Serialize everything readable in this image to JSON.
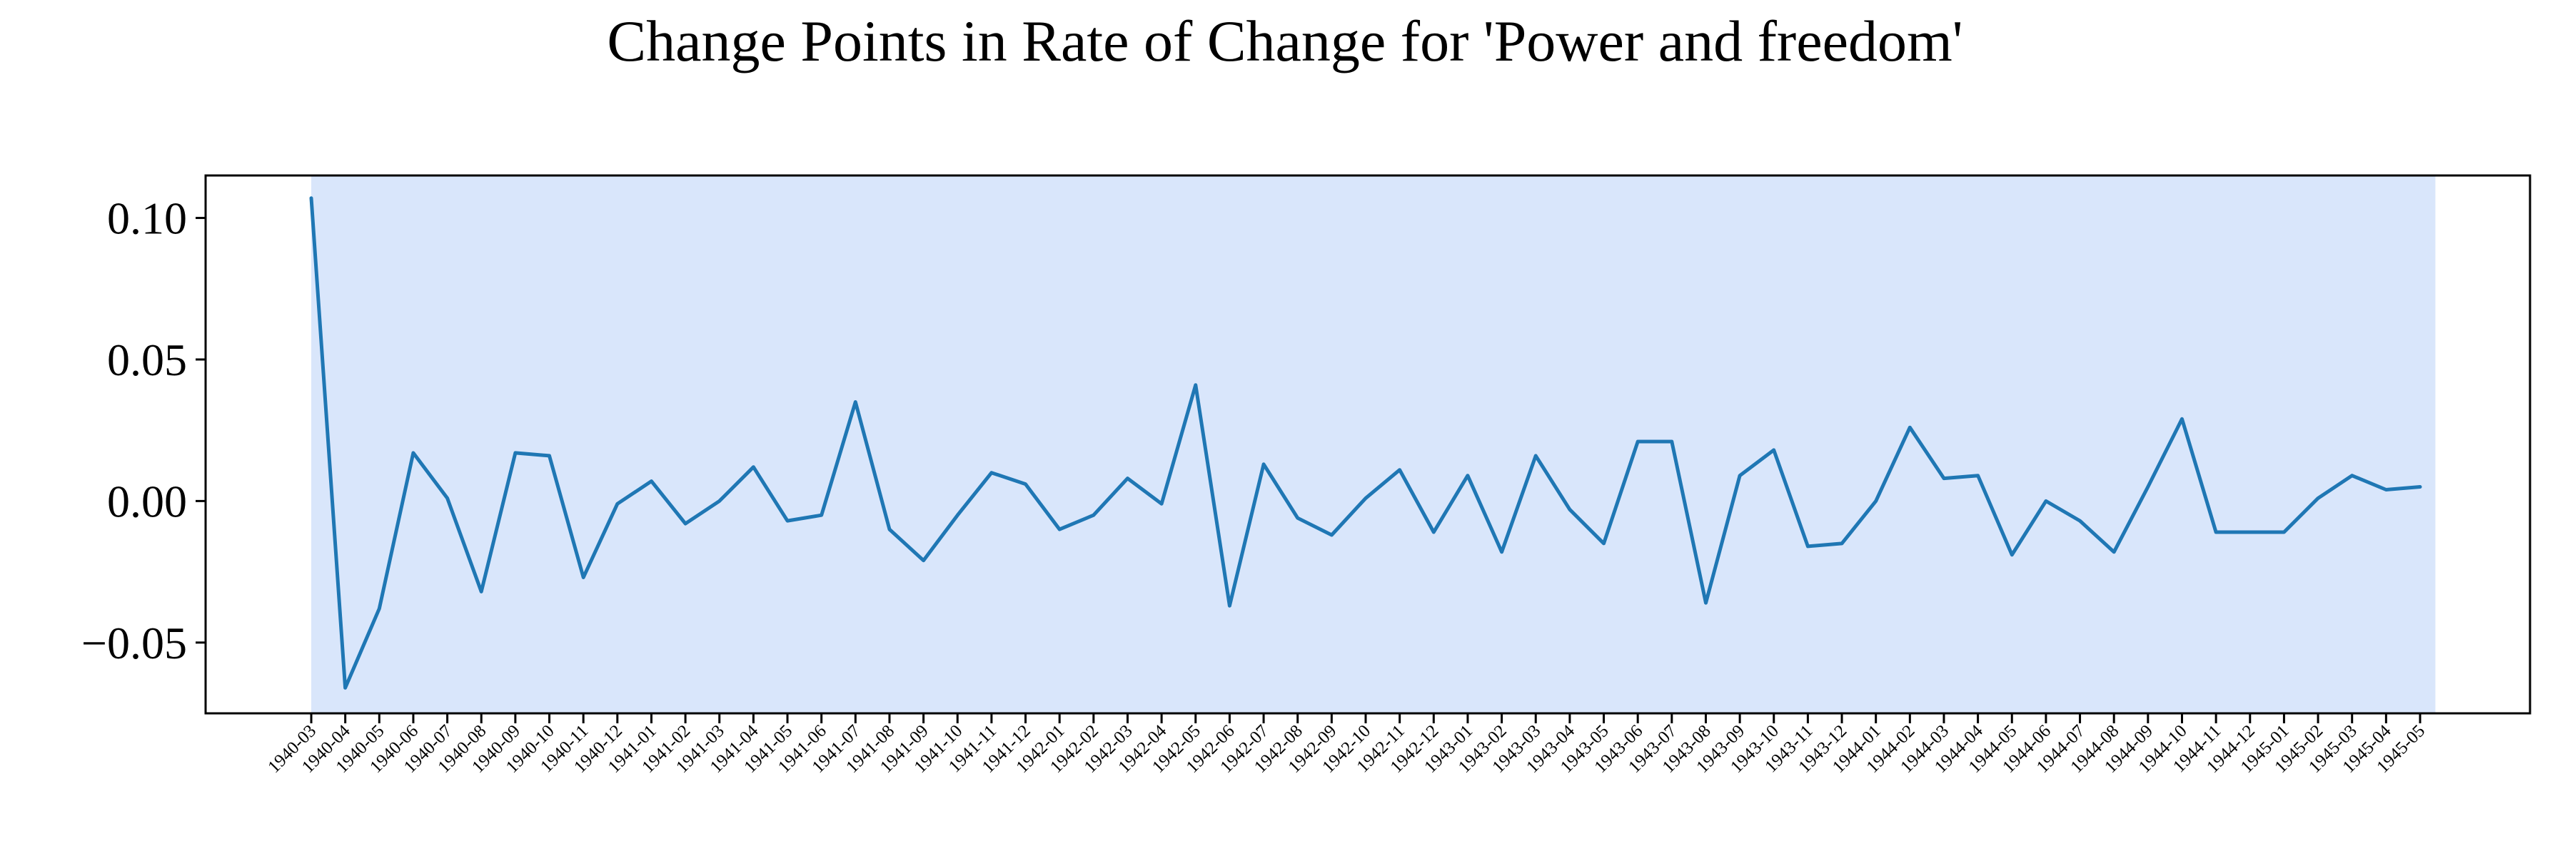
{
  "chart_data": {
    "type": "line",
    "title": "Change Points in Rate of Change for 'Power and freedom'",
    "xlabel": "",
    "ylabel": "",
    "ylim": [
      -0.075,
      0.115
    ],
    "yticks": [
      -0.05,
      0.0,
      0.05,
      0.1
    ],
    "ytick_labels": [
      "−0.05",
      "0.00",
      "0.05",
      "0.10"
    ],
    "grid": false,
    "x": [
      "1940-03",
      "1940-04",
      "1940-05",
      "1940-06",
      "1940-07",
      "1940-08",
      "1940-09",
      "1940-10",
      "1940-11",
      "1940-12",
      "1941-01",
      "1941-02",
      "1941-03",
      "1941-04",
      "1941-05",
      "1941-06",
      "1941-07",
      "1941-08",
      "1941-09",
      "1941-10",
      "1941-11",
      "1941-12",
      "1942-01",
      "1942-02",
      "1942-03",
      "1942-04",
      "1942-05",
      "1942-06",
      "1942-07",
      "1942-08",
      "1942-09",
      "1942-10",
      "1942-11",
      "1942-12",
      "1943-01",
      "1943-02",
      "1943-03",
      "1943-04",
      "1943-05",
      "1943-06",
      "1943-07",
      "1943-08",
      "1943-09",
      "1943-10",
      "1943-11",
      "1943-12",
      "1944-01",
      "1944-02",
      "1944-03",
      "1944-04",
      "1944-05",
      "1944-06",
      "1944-07",
      "1944-08",
      "1944-09",
      "1944-10",
      "1944-11",
      "1944-12",
      "1945-01",
      "1945-02",
      "1945-03",
      "1945-04",
      "1945-05"
    ],
    "series": [
      {
        "color": "#1f77b4",
        "values": [
          0.107,
          -0.066,
          -0.038,
          0.017,
          0.001,
          -0.032,
          0.017,
          0.016,
          -0.027,
          -0.001,
          0.007,
          -0.008,
          0.0,
          0.012,
          -0.007,
          -0.005,
          0.035,
          -0.01,
          -0.021,
          -0.005,
          0.01,
          0.006,
          -0.01,
          -0.005,
          0.008,
          -0.001,
          0.041,
          -0.037,
          0.013,
          -0.006,
          -0.012,
          0.001,
          0.011,
          -0.011,
          0.009,
          -0.018,
          0.016,
          -0.003,
          -0.015,
          0.021,
          0.021,
          -0.036,
          0.009,
          0.018,
          -0.016,
          -0.015,
          0.0,
          0.026,
          0.008,
          0.009,
          -0.019,
          0.0,
          -0.007,
          -0.018,
          0.005,
          0.029,
          -0.011,
          -0.011,
          -0.011,
          0.001,
          0.009,
          0.004,
          0.005
        ]
      }
    ],
    "highlight_span": {
      "x_start": "1940-03",
      "x_end": "1945-05",
      "color": "#d9e6fb"
    }
  }
}
